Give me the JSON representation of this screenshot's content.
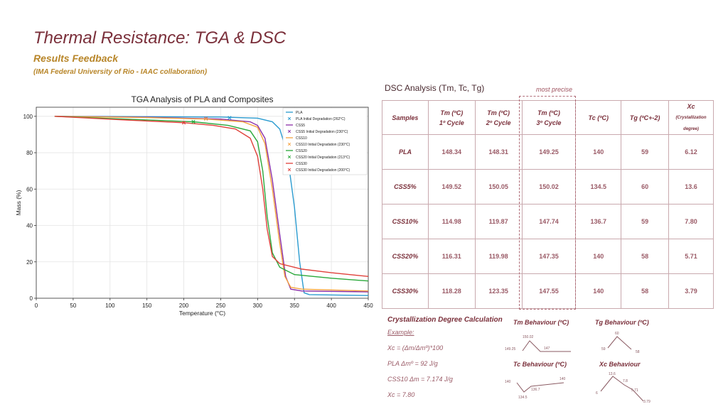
{
  "slide": {
    "title": "Thermal Resistance: TGA & DSC",
    "subtitle": "Results Feedback",
    "note": "(IMA Federal University of Rio - IAAC collaboration)"
  },
  "chart_data": {
    "type": "line",
    "title": "TGA Analysis of PLA and Composites",
    "xlabel": "Temperature (°C)",
    "ylabel": "Mass (%)",
    "xlim": [
      0,
      450
    ],
    "ylim": [
      0,
      105
    ],
    "xticks": [
      0,
      50,
      100,
      150,
      200,
      250,
      300,
      350,
      400,
      450
    ],
    "yticks": [
      0,
      20,
      40,
      60,
      80,
      100
    ],
    "grid": true,
    "legend_position": "top-right",
    "series": [
      {
        "name": "PLA",
        "color": "#2a9bd0",
        "points": [
          [
            25,
            100
          ],
          [
            150,
            99.8
          ],
          [
            250,
            99.6
          ],
          [
            300,
            99
          ],
          [
            320,
            97
          ],
          [
            330,
            93
          ],
          [
            340,
            80
          ],
          [
            350,
            50
          ],
          [
            357,
            20
          ],
          [
            363,
            3
          ],
          [
            370,
            2
          ],
          [
            450,
            1.5
          ]
        ]
      },
      {
        "name": "CSS5",
        "color": "#8b2fa8",
        "points": [
          [
            25,
            100
          ],
          [
            150,
            99.5
          ],
          [
            250,
            98.5
          ],
          [
            290,
            97
          ],
          [
            300,
            95
          ],
          [
            310,
            88
          ],
          [
            320,
            65
          ],
          [
            330,
            35
          ],
          [
            338,
            12
          ],
          [
            345,
            5
          ],
          [
            360,
            4
          ],
          [
            450,
            3.5
          ]
        ]
      },
      {
        "name": "CSS10",
        "color": "#f5a340",
        "points": [
          [
            25,
            100
          ],
          [
            150,
            99.3
          ],
          [
            230,
            98.5
          ],
          [
            280,
            97
          ],
          [
            300,
            94
          ],
          [
            310,
            85
          ],
          [
            320,
            60
          ],
          [
            330,
            30
          ],
          [
            337,
            12
          ],
          [
            345,
            6
          ],
          [
            360,
            5
          ],
          [
            450,
            4
          ]
        ]
      },
      {
        "name": "CSS20",
        "color": "#2aa83a",
        "points": [
          [
            25,
            100
          ],
          [
            150,
            98
          ],
          [
            213,
            97
          ],
          [
            260,
            95
          ],
          [
            290,
            92
          ],
          [
            300,
            86
          ],
          [
            307,
            70
          ],
          [
            313,
            45
          ],
          [
            320,
            25
          ],
          [
            330,
            17
          ],
          [
            350,
            13
          ],
          [
            400,
            11
          ],
          [
            450,
            9.5
          ]
        ]
      },
      {
        "name": "CSS30",
        "color": "#e0403a",
        "points": [
          [
            25,
            100
          ],
          [
            120,
            98
          ],
          [
            200,
            96.5
          ],
          [
            240,
            95
          ],
          [
            270,
            93
          ],
          [
            290,
            88
          ],
          [
            300,
            78
          ],
          [
            307,
            60
          ],
          [
            313,
            38
          ],
          [
            320,
            23
          ],
          [
            330,
            19
          ],
          [
            360,
            16
          ],
          [
            400,
            14
          ],
          [
            450,
            12
          ]
        ]
      }
    ],
    "markers": [
      {
        "name": "PLA Initial Degradation (262°C)",
        "color": "#2a9bd0",
        "x": 262,
        "y": 99.2
      },
      {
        "name": "CSS5 Initial Degradation (230°C)",
        "color": "#8b2fa8",
        "x": 230,
        "y": 98.8
      },
      {
        "name": "CSS10 Initial Degradation (230°C)",
        "color": "#f5a340",
        "x": 230,
        "y": 98.6
      },
      {
        "name": "CSS20 Initial Degradation (213°C)",
        "color": "#2aa83a",
        "x": 213,
        "y": 97
      },
      {
        "name": "CSS30 Initial Degradation (200°C)",
        "color": "#e0403a",
        "x": 200,
        "y": 96.5
      }
    ]
  },
  "dsc": {
    "title": "DSC Analysis (Tm, Tc, Tg)",
    "most_precise": "most precise",
    "headers": {
      "samples": "Samples",
      "tm1_a": "Tm (ºC)",
      "tm1_b": "1º Cycle",
      "tm2_a": "Tm (ºC)",
      "tm2_b": "2º Cycle",
      "tm3_a": "Tm (ºC)",
      "tm3_b": "3º Cycle",
      "tc": "Tc (ºC)",
      "tg": "Tg (ºC+-2)",
      "xc_a": "Xc",
      "xc_b": "(Crystallization degree)"
    },
    "rows": [
      {
        "sample": "PLA",
        "tm1": "148.34",
        "tm2": "148.31",
        "tm3": "149.25",
        "tc": "140",
        "tg": "59",
        "xc": "6.12"
      },
      {
        "sample": "CSS5%",
        "tm1": "149.52",
        "tm2": "150.05",
        "tm3": "150.02",
        "tc": "134.5",
        "tg": "60",
        "xc": "13.6"
      },
      {
        "sample": "CSS10%",
        "tm1": "114.98",
        "tm2": "119.87",
        "tm3": "147.74",
        "tc": "136.7",
        "tg": "59",
        "xc": "7.80"
      },
      {
        "sample": "CSS20%",
        "tm1": "116.31",
        "tm2": "119.98",
        "tm3": "147.35",
        "tc": "140",
        "tg": "58",
        "xc": "5.71"
      },
      {
        "sample": "CSS30%",
        "tm1": "118.28",
        "tm2": "123.35",
        "tm3": "147.55",
        "tc": "140",
        "tg": "58",
        "xc": "3.79"
      }
    ]
  },
  "calc": {
    "title": "Crystallization Degree Calculation",
    "example": "Example:",
    "formula": "Xc = (Δm/Δmº)*100",
    "line1": "PLA Δmº = 92 J/g",
    "line2": "CSS10 Δm = 7.174 J/g",
    "result": "Xc = 7.80"
  },
  "mini_charts": {
    "tm": {
      "title": "Tm Behaviour (ºC)",
      "labels": [
        "149.25",
        "150.02",
        "147"
      ]
    },
    "tg": {
      "title": "Tg Behaviour (ºC)",
      "labels": [
        "59",
        "60",
        "58"
      ]
    },
    "tc": {
      "title": "Tc Behaviour (ºC)",
      "labels": [
        "140",
        "134.5",
        "136.7",
        "140"
      ]
    },
    "xc": {
      "title": "Xc Behaviour",
      "labels": [
        "6",
        "13.6",
        "7.8",
        "5.71",
        "3.79"
      ]
    }
  }
}
